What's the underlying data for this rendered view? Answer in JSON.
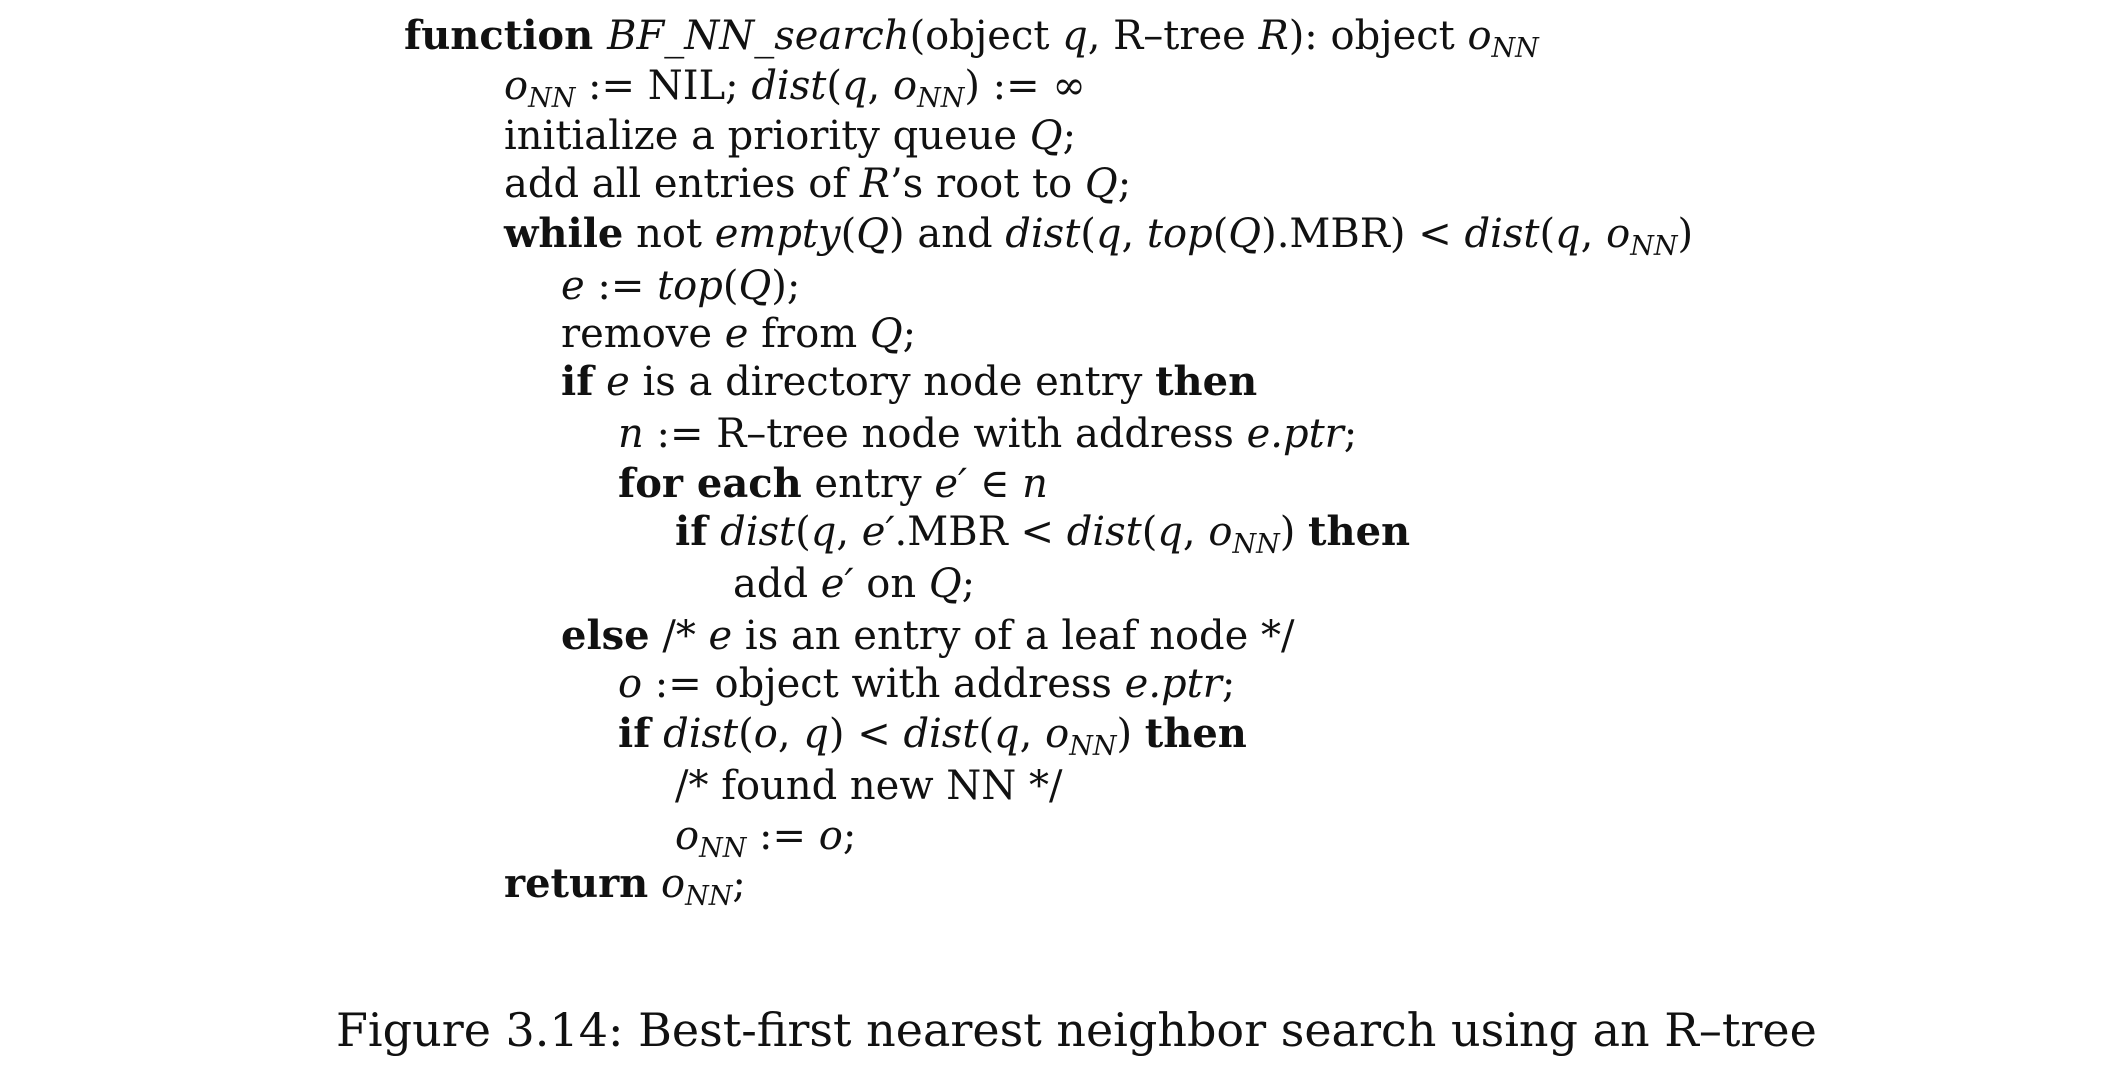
{
  "algorithm": {
    "lines": [
      {
        "indent": 0,
        "segments": [
          {
            "t": "function ",
            "s": "kw"
          },
          {
            "t": "BF_NN_search",
            "s": "it"
          },
          {
            "t": "(object ",
            "s": ""
          },
          {
            "t": "q",
            "s": "it"
          },
          {
            "t": ", R–tree ",
            "s": ""
          },
          {
            "t": "R",
            "s": "it"
          },
          {
            "t": "): object ",
            "s": ""
          },
          {
            "t": "o",
            "s": "it"
          },
          {
            "t": "NN",
            "s": "sub"
          }
        ]
      },
      {
        "indent": 1,
        "segments": [
          {
            "t": "o",
            "s": "it"
          },
          {
            "t": "NN",
            "s": "sub"
          },
          {
            "t": " := NIL; ",
            "s": ""
          },
          {
            "t": "dist",
            "s": "it"
          },
          {
            "t": "(",
            "s": ""
          },
          {
            "t": "q",
            "s": "it"
          },
          {
            "t": ", ",
            "s": ""
          },
          {
            "t": "o",
            "s": "it"
          },
          {
            "t": "NN",
            "s": "sub"
          },
          {
            "t": ") := ∞",
            "s": ""
          }
        ]
      },
      {
        "indent": 1,
        "segments": [
          {
            "t": "initialize a priority queue ",
            "s": ""
          },
          {
            "t": "Q",
            "s": "it"
          },
          {
            "t": ";",
            "s": ""
          }
        ]
      },
      {
        "indent": 1,
        "segments": [
          {
            "t": "add all entries of ",
            "s": ""
          },
          {
            "t": "R",
            "s": "it"
          },
          {
            "t": "’s root to ",
            "s": ""
          },
          {
            "t": "Q",
            "s": "it"
          },
          {
            "t": ";",
            "s": ""
          }
        ]
      },
      {
        "indent": 1,
        "segments": [
          {
            "t": "while",
            "s": "kw"
          },
          {
            "t": " not ",
            "s": ""
          },
          {
            "t": "empty",
            "s": "it"
          },
          {
            "t": "(",
            "s": ""
          },
          {
            "t": "Q",
            "s": "it"
          },
          {
            "t": ") and ",
            "s": ""
          },
          {
            "t": "dist",
            "s": "it"
          },
          {
            "t": "(",
            "s": ""
          },
          {
            "t": "q",
            "s": "it"
          },
          {
            "t": ", ",
            "s": ""
          },
          {
            "t": "top",
            "s": "it"
          },
          {
            "t": "(",
            "s": ""
          },
          {
            "t": "Q",
            "s": "it"
          },
          {
            "t": ").MBR) < ",
            "s": ""
          },
          {
            "t": "dist",
            "s": "it"
          },
          {
            "t": "(",
            "s": ""
          },
          {
            "t": "q",
            "s": "it"
          },
          {
            "t": ", ",
            "s": ""
          },
          {
            "t": "o",
            "s": "it"
          },
          {
            "t": "NN",
            "s": "sub"
          },
          {
            "t": ")",
            "s": ""
          }
        ]
      },
      {
        "indent": 2,
        "segments": [
          {
            "t": "e",
            "s": "it"
          },
          {
            "t": " := ",
            "s": ""
          },
          {
            "t": "top",
            "s": "it"
          },
          {
            "t": "(",
            "s": ""
          },
          {
            "t": "Q",
            "s": "it"
          },
          {
            "t": ");",
            "s": ""
          }
        ]
      },
      {
        "indent": 2,
        "segments": [
          {
            "t": "remove ",
            "s": ""
          },
          {
            "t": "e",
            "s": "it"
          },
          {
            "t": " from ",
            "s": ""
          },
          {
            "t": "Q",
            "s": "it"
          },
          {
            "t": ";",
            "s": ""
          }
        ]
      },
      {
        "indent": 2,
        "segments": [
          {
            "t": "if",
            "s": "kw"
          },
          {
            "t": " ",
            "s": ""
          },
          {
            "t": "e",
            "s": "it"
          },
          {
            "t": " is a directory node entry ",
            "s": ""
          },
          {
            "t": "then",
            "s": "kw"
          }
        ]
      },
      {
        "indent": 3,
        "segments": [
          {
            "t": "n",
            "s": "it"
          },
          {
            "t": " := R–tree node with address ",
            "s": ""
          },
          {
            "t": "e.ptr",
            "s": "it"
          },
          {
            "t": ";",
            "s": ""
          }
        ]
      },
      {
        "indent": 3,
        "segments": [
          {
            "t": "for each",
            "s": "kw"
          },
          {
            "t": " entry ",
            "s": ""
          },
          {
            "t": "e′",
            "s": "it"
          },
          {
            "t": " ∈ ",
            "s": ""
          },
          {
            "t": "n",
            "s": "it"
          }
        ]
      },
      {
        "indent": 4,
        "segments": [
          {
            "t": "if",
            "s": "kw"
          },
          {
            "t": " ",
            "s": ""
          },
          {
            "t": "dist",
            "s": "it"
          },
          {
            "t": "(",
            "s": ""
          },
          {
            "t": "q",
            "s": "it"
          },
          {
            "t": ", ",
            "s": ""
          },
          {
            "t": "e′",
            "s": "it"
          },
          {
            "t": ".MBR < ",
            "s": ""
          },
          {
            "t": "dist",
            "s": "it"
          },
          {
            "t": "(",
            "s": ""
          },
          {
            "t": "q",
            "s": "it"
          },
          {
            "t": ", ",
            "s": ""
          },
          {
            "t": "o",
            "s": "it"
          },
          {
            "t": "NN",
            "s": "sub"
          },
          {
            "t": ") ",
            "s": ""
          },
          {
            "t": "then",
            "s": "kw"
          }
        ]
      },
      {
        "indent": 5,
        "segments": [
          {
            "t": "add ",
            "s": ""
          },
          {
            "t": "e′",
            "s": "it"
          },
          {
            "t": " on ",
            "s": ""
          },
          {
            "t": "Q",
            "s": "it"
          },
          {
            "t": ";",
            "s": ""
          }
        ]
      },
      {
        "indent": 2,
        "segments": [
          {
            "t": "else",
            "s": "kw"
          },
          {
            "t": " /* ",
            "s": ""
          },
          {
            "t": "e",
            "s": "it"
          },
          {
            "t": " is an entry of a leaf node */",
            "s": ""
          }
        ]
      },
      {
        "indent": 3,
        "segments": [
          {
            "t": "o",
            "s": "it"
          },
          {
            "t": " := object with address ",
            "s": ""
          },
          {
            "t": "e.ptr",
            "s": "it"
          },
          {
            "t": ";",
            "s": ""
          }
        ]
      },
      {
        "indent": 3,
        "segments": [
          {
            "t": "if",
            "s": "kw"
          },
          {
            "t": " ",
            "s": ""
          },
          {
            "t": "dist",
            "s": "it"
          },
          {
            "t": "(",
            "s": ""
          },
          {
            "t": "o",
            "s": "it"
          },
          {
            "t": ", ",
            "s": ""
          },
          {
            "t": "q",
            "s": "it"
          },
          {
            "t": ") < ",
            "s": ""
          },
          {
            "t": "dist",
            "s": "it"
          },
          {
            "t": "(",
            "s": ""
          },
          {
            "t": "q",
            "s": "it"
          },
          {
            "t": ", ",
            "s": ""
          },
          {
            "t": "o",
            "s": "it"
          },
          {
            "t": "NN",
            "s": "sub"
          },
          {
            "t": ") ",
            "s": ""
          },
          {
            "t": "then",
            "s": "kw"
          }
        ]
      },
      {
        "indent": 4,
        "segments": [
          {
            "t": "/* found new NN */",
            "s": ""
          }
        ]
      },
      {
        "indent": 4,
        "segments": [
          {
            "t": "o",
            "s": "it"
          },
          {
            "t": "NN",
            "s": "sub"
          },
          {
            "t": " := ",
            "s": ""
          },
          {
            "t": "o",
            "s": "it"
          },
          {
            "t": ";",
            "s": ""
          }
        ]
      },
      {
        "indent": 1,
        "segments": [
          {
            "t": "return",
            "s": "kw"
          },
          {
            "t": " ",
            "s": ""
          },
          {
            "t": "o",
            "s": "it"
          },
          {
            "t": "NN",
            "s": "sub"
          },
          {
            "t": ";",
            "s": ""
          }
        ]
      }
    ]
  },
  "caption": "Figure 3.14: Best-first nearest neighbor search using an R–tree"
}
